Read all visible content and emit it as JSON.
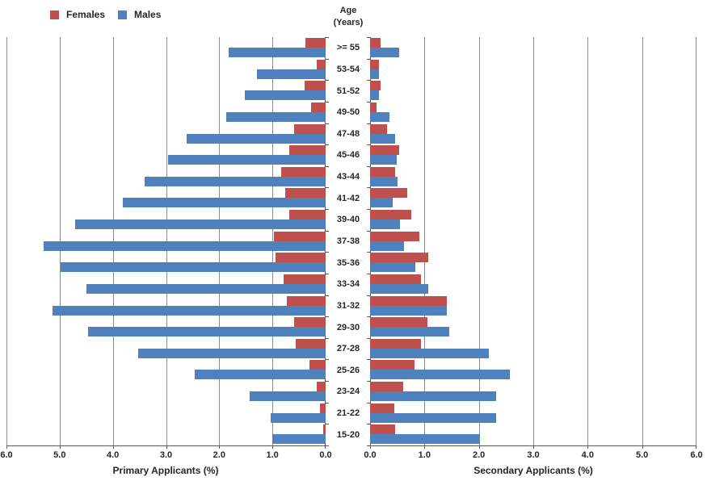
{
  "legend": {
    "items": [
      {
        "label": "Females",
        "color": "#C0504D"
      },
      {
        "label": "Males",
        "color": "#4F81BD"
      }
    ]
  },
  "center_axis_title": {
    "line1": "Age",
    "line2": "(Years)"
  },
  "colors": {
    "females": "#C0504D",
    "males": "#4F81BD",
    "gridline": "#8C8C8C",
    "axis": "#595959",
    "text": "#262626",
    "background": "#FFFFFF"
  },
  "chart_data": {
    "type": "bar",
    "subtype": "population-pyramid",
    "grid": true,
    "legend_position": "top-left",
    "categories": [
      ">= 55",
      "53-54",
      "51-52",
      "49-50",
      "47-48",
      "45-46",
      "43-44",
      "41-42",
      "39-40",
      "37-38",
      "35-36",
      "33-34",
      "31-32",
      "29-30",
      "27-28",
      "25-26",
      "23-24",
      "21-22",
      "15-20"
    ],
    "category_axis_title": "Age (Years)",
    "charts": [
      {
        "id": "primary",
        "side": "left",
        "title": "Primary Applicants (%)",
        "xlim": [
          0,
          6
        ],
        "direction": "right-to-left",
        "tick_labels": [
          "6.0",
          "5.0",
          "4.0",
          "3.0",
          "2.0",
          "1.0",
          "0.0"
        ],
        "tick_values": [
          6,
          5,
          4,
          3,
          2,
          1,
          0
        ],
        "series": [
          {
            "name": "Females",
            "color": "#C0504D",
            "values": [
              0.38,
              0.17,
              0.39,
              0.27,
              0.6,
              0.69,
              0.83,
              0.76,
              0.69,
              0.97,
              0.94,
              0.79,
              0.73,
              0.6,
              0.56,
              0.3,
              0.17,
              0.1,
              0.04
            ]
          },
          {
            "name": "Males",
            "color": "#4F81BD",
            "values": [
              1.83,
              1.29,
              1.52,
              1.87,
              2.61,
              2.96,
              3.4,
              3.82,
              4.71,
              5.3,
              4.99,
              4.49,
              5.13,
              4.46,
              3.52,
              2.46,
              1.43,
              1.03,
              1.0
            ]
          }
        ]
      },
      {
        "id": "secondary",
        "side": "right",
        "title": "Secondary Applicants (%)",
        "xlim": [
          0,
          6
        ],
        "direction": "left-to-right",
        "tick_labels": [
          "0.0",
          "1.0",
          "2.0",
          "3.0",
          "4.0",
          "5.0",
          "6.0"
        ],
        "tick_values": [
          0,
          1,
          2,
          3,
          4,
          5,
          6
        ],
        "series": [
          {
            "name": "Females",
            "color": "#C0504D",
            "values": [
              0.19,
              0.17,
              0.2,
              0.12,
              0.31,
              0.53,
              0.46,
              0.68,
              0.75,
              0.9,
              1.07,
              0.93,
              1.41,
              1.06,
              0.93,
              0.81,
              0.61,
              0.45,
              0.46
            ]
          },
          {
            "name": "Males",
            "color": "#4F81BD",
            "values": [
              0.53,
              0.16,
              0.17,
              0.36,
              0.46,
              0.49,
              0.5,
              0.41,
              0.55,
              0.62,
              0.83,
              1.07,
              1.41,
              1.45,
              2.18,
              2.57,
              2.31,
              2.32,
              2.02
            ]
          }
        ]
      }
    ]
  }
}
